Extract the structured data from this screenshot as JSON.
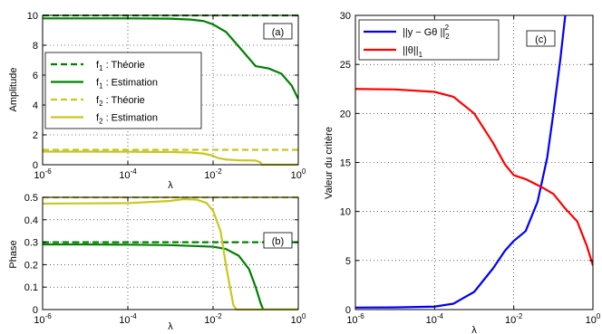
{
  "chart_data": [
    {
      "id": "a",
      "type": "line",
      "panel_label": "(a)",
      "xlabel": "λ",
      "ylabel": "Amplitude",
      "xscale": "log",
      "xlim": [
        1e-06,
        1
      ],
      "ylim": [
        0,
        10
      ],
      "xticks": [
        "10^-6",
        "10^-4",
        "10^-2",
        "10^0"
      ],
      "yticks": [
        0,
        2,
        4,
        6,
        8,
        10
      ],
      "grid": true,
      "legend_position": "middle-left",
      "series": [
        {
          "name": "f1 : Théorie",
          "name_base": "f",
          "name_sub": "1",
          "name_rest": " : Théorie",
          "color": "#008000",
          "style": "dashed",
          "x": [
            1e-06,
            1
          ],
          "y": [
            10,
            10
          ]
        },
        {
          "name": "f1 : Estimation",
          "name_base": "f",
          "name_sub": "1",
          "name_rest": " : Estimation",
          "color": "#008000",
          "style": "solid",
          "x": [
            1e-06,
            1e-05,
            0.0001,
            0.001,
            0.003,
            0.006,
            0.01,
            0.02,
            0.05,
            0.1,
            0.2,
            0.4,
            0.7,
            1
          ],
          "y": [
            9.8,
            9.8,
            9.8,
            9.78,
            9.72,
            9.62,
            9.4,
            8.9,
            7.6,
            6.6,
            6.45,
            6.1,
            5.3,
            4.4
          ]
        },
        {
          "name": "f2 : Théorie",
          "name_base": "f",
          "name_sub": "2",
          "name_rest": " : Théorie",
          "color": "#c8c81e",
          "style": "dashed",
          "x": [
            1e-06,
            1
          ],
          "y": [
            1.0,
            1.0
          ]
        },
        {
          "name": "f2 : Estimation",
          "name_base": "f",
          "name_sub": "2",
          "name_rest": " : Estimation",
          "color": "#c8c81e",
          "style": "solid",
          "x": [
            1e-06,
            1e-05,
            0.0001,
            0.001,
            0.003,
            0.006,
            0.01,
            0.013,
            0.02,
            0.04,
            0.1,
            0.13,
            0.14,
            1
          ],
          "y": [
            0.88,
            0.88,
            0.87,
            0.85,
            0.82,
            0.75,
            0.6,
            0.45,
            0.35,
            0.3,
            0.28,
            0.15,
            0.0,
            0.0
          ]
        }
      ]
    },
    {
      "id": "b",
      "type": "line",
      "panel_label": "(b)",
      "xlabel": "λ",
      "ylabel": "Phase",
      "xscale": "log",
      "xlim": [
        1e-06,
        1
      ],
      "ylim": [
        0,
        0.5
      ],
      "xticks": [
        "10^-6",
        "10^-4",
        "10^-2",
        "10^0"
      ],
      "yticks": [
        0,
        0.1,
        0.2,
        0.3,
        0.4,
        0.5
      ],
      "grid": true,
      "series": [
        {
          "color": "#008000",
          "style": "dashed",
          "x": [
            1e-06,
            1
          ],
          "y": [
            0.3,
            0.3
          ]
        },
        {
          "color": "#008000",
          "style": "solid",
          "x": [
            1e-06,
            1e-05,
            0.0001,
            0.001,
            0.01,
            0.02,
            0.04,
            0.07,
            0.1,
            0.13,
            0.15,
            1
          ],
          "y": [
            0.29,
            0.29,
            0.289,
            0.287,
            0.28,
            0.27,
            0.24,
            0.18,
            0.1,
            0.03,
            0.0,
            0.0
          ]
        },
        {
          "color": "#c8c81e",
          "style": "dashed",
          "x": [
            1e-06,
            1
          ],
          "y": [
            0.5,
            0.5
          ]
        },
        {
          "color": "#c8c81e",
          "style": "solid",
          "x": [
            1e-06,
            1e-05,
            0.0001,
            0.001,
            0.002,
            0.004,
            0.007,
            0.01,
            0.015,
            0.02,
            0.025,
            0.03,
            0.035,
            1
          ],
          "y": [
            0.472,
            0.473,
            0.474,
            0.484,
            0.492,
            0.49,
            0.475,
            0.44,
            0.35,
            0.2,
            0.1,
            0.02,
            0.0,
            0.0
          ]
        }
      ]
    },
    {
      "id": "c",
      "type": "line",
      "panel_label": "(c)",
      "xlabel": "λ",
      "ylabel": "Valeur du critère",
      "xscale": "log",
      "xlim": [
        1e-06,
        1
      ],
      "ylim": [
        0,
        30
      ],
      "xticks": [
        "10^-6",
        "10^-4",
        "10^-2",
        "10^0"
      ],
      "yticks": [
        0,
        5,
        10,
        15,
        20,
        25,
        30
      ],
      "grid": true,
      "legend_position": "top-left",
      "series": [
        {
          "name": "||y − Gθ ||_2^2",
          "name_main": "||y − Gθ ||",
          "name_sub": "2",
          "name_sup": "2",
          "color": "#0000ff",
          "style": "solid",
          "x": [
            1e-06,
            1e-05,
            0.0001,
            0.0003,
            0.001,
            0.003,
            0.006,
            0.01,
            0.02,
            0.04,
            0.07,
            0.1,
            0.15,
            0.2
          ],
          "y": [
            0.2,
            0.22,
            0.3,
            0.6,
            1.8,
            4.2,
            6.0,
            7.0,
            8.0,
            11.0,
            15.5,
            20.0,
            25.5,
            30.0
          ]
        },
        {
          "name": "||θ||_1",
          "name_main": "||θ||",
          "name_sub": "1",
          "color": "#ff0000",
          "style": "solid",
          "x": [
            1e-06,
            1e-05,
            0.0001,
            0.0003,
            0.001,
            0.003,
            0.006,
            0.01,
            0.02,
            0.05,
            0.1,
            0.2,
            0.4,
            0.7,
            1
          ],
          "y": [
            22.5,
            22.45,
            22.2,
            21.7,
            20.0,
            17.0,
            14.8,
            13.7,
            13.3,
            12.5,
            11.8,
            10.3,
            9.0,
            6.5,
            4.5
          ]
        }
      ]
    }
  ]
}
